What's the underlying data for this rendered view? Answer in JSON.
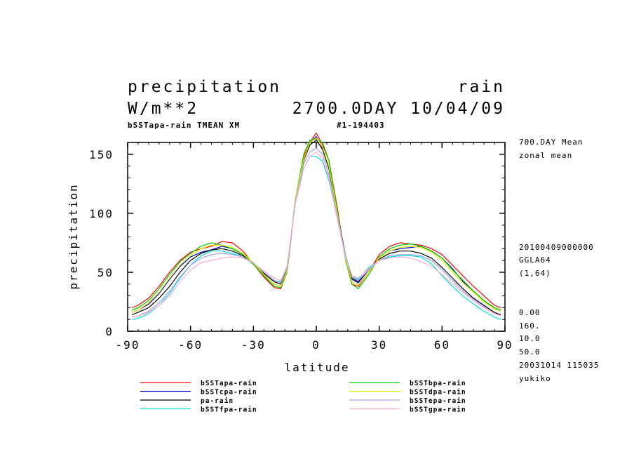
{
  "header": {
    "title_left": "precipitation",
    "title_right": "rain",
    "units": "W/m**2",
    "time": "2700.0DAY 10/04/09",
    "subtitle_left": "bSSTapa-rain TMEAN XM",
    "subtitle_center": "#1-194403"
  },
  "side_info": {
    "mean": "700.DAY Mean",
    "zonal": "zonal mean",
    "date": "20100409000000",
    "grid": "GGLA64",
    "range": "(1,64)",
    "v1": "0.00",
    "v2": "160.",
    "v3": "10.0",
    "v4": "50.0",
    "stamp": "20031014 115035",
    "user": "yukiko"
  },
  "chart_data": {
    "type": "line",
    "title": "precipitation",
    "xlabel": "latitude",
    "ylabel": "precipitation",
    "xlim": [
      -90,
      90
    ],
    "ylim": [
      0,
      160
    ],
    "xticks": [
      -90,
      -60,
      -30,
      0,
      30,
      60,
      90
    ],
    "yticks": [
      0,
      50,
      100,
      150
    ],
    "x": [
      -88,
      -85,
      -80,
      -75,
      -70,
      -65,
      -60,
      -55,
      -50,
      -45,
      -40,
      -35,
      -30,
      -25,
      -20,
      -17,
      -14,
      -10,
      -6,
      -3,
      0,
      3,
      6,
      10,
      14,
      17,
      20,
      25,
      30,
      35,
      40,
      45,
      50,
      55,
      60,
      65,
      70,
      75,
      80,
      85,
      88
    ],
    "series": [
      {
        "name": "bSSTapa-rain",
        "color": "#ff0000",
        "values": [
          20,
          22,
          28,
          38,
          50,
          60,
          67,
          70,
          72,
          76,
          75,
          68,
          57,
          46,
          37,
          36,
          50,
          110,
          148,
          160,
          168,
          158,
          145,
          105,
          60,
          40,
          38,
          50,
          65,
          72,
          75,
          74,
          73,
          70,
          65,
          56,
          47,
          38,
          30,
          22,
          20
        ]
      },
      {
        "name": "bSSTcpa-rain",
        "color": "#0000cc",
        "values": [
          16,
          18,
          23,
          32,
          44,
          55,
          63,
          67,
          69,
          72,
          70,
          65,
          57,
          48,
          40,
          38,
          50,
          112,
          145,
          160,
          165,
          155,
          140,
          102,
          62,
          44,
          41,
          52,
          62,
          68,
          70,
          71,
          72,
          68,
          62,
          53,
          42,
          34,
          26,
          19,
          17
        ]
      },
      {
        "name": "pa-rain",
        "color": "#000000",
        "values": [
          14,
          16,
          20,
          28,
          38,
          50,
          60,
          66,
          69,
          70,
          68,
          64,
          57,
          49,
          42,
          40,
          52,
          110,
          145,
          158,
          162,
          154,
          138,
          100,
          64,
          45,
          42,
          52,
          61,
          66,
          68,
          68,
          66,
          62,
          54,
          45,
          36,
          28,
          22,
          16,
          14
        ]
      },
      {
        "name": "bSSTfpa-rain",
        "color": "#00e0e0",
        "values": [
          10,
          11,
          15,
          22,
          32,
          45,
          56,
          64,
          68,
          68,
          66,
          63,
          57,
          50,
          43,
          42,
          55,
          108,
          138,
          148,
          148,
          144,
          128,
          96,
          64,
          47,
          44,
          54,
          60,
          63,
          64,
          64,
          63,
          57,
          47,
          38,
          30,
          23,
          17,
          12,
          10
        ]
      },
      {
        "name": "bSSTbpa-rain",
        "color": "#00cc00",
        "values": [
          18,
          20,
          26,
          36,
          48,
          59,
          66,
          72,
          75,
          73,
          70,
          65,
          57,
          47,
          38,
          37,
          50,
          112,
          150,
          162,
          163,
          160,
          145,
          103,
          60,
          40,
          36,
          48,
          63,
          70,
          73,
          74,
          72,
          68,
          62,
          52,
          43,
          34,
          26,
          20,
          18
        ]
      },
      {
        "name": "bSSTdpa-rain",
        "color": "#eeee00",
        "values": [
          16,
          18,
          24,
          33,
          45,
          56,
          64,
          70,
          73,
          73,
          71,
          66,
          58,
          48,
          40,
          38,
          51,
          112,
          146,
          160,
          164,
          156,
          140,
          100,
          61,
          42,
          39,
          50,
          62,
          68,
          71,
          72,
          71,
          67,
          60,
          50,
          41,
          33,
          25,
          19,
          17
        ]
      },
      {
        "name": "bSSTepa-rain",
        "color": "#a79ff0",
        "values": [
          12,
          13,
          17,
          24,
          34,
          46,
          56,
          62,
          65,
          66,
          65,
          63,
          58,
          50,
          43,
          41,
          53,
          110,
          142,
          152,
          155,
          150,
          133,
          98,
          63,
          46,
          43,
          52,
          60,
          64,
          65,
          65,
          64,
          60,
          52,
          43,
          34,
          27,
          21,
          15,
          13
        ]
      },
      {
        "name": "bSSTgpa-rain",
        "color": "#ffaacc",
        "values": [
          12,
          13,
          16,
          22,
          30,
          42,
          52,
          58,
          60,
          62,
          63,
          62,
          58,
          51,
          45,
          43,
          55,
          108,
          138,
          148,
          152,
          146,
          130,
          95,
          62,
          47,
          45,
          53,
          60,
          62,
          63,
          62,
          59,
          55,
          48,
          40,
          33,
          26,
          20,
          15,
          13
        ]
      }
    ]
  }
}
